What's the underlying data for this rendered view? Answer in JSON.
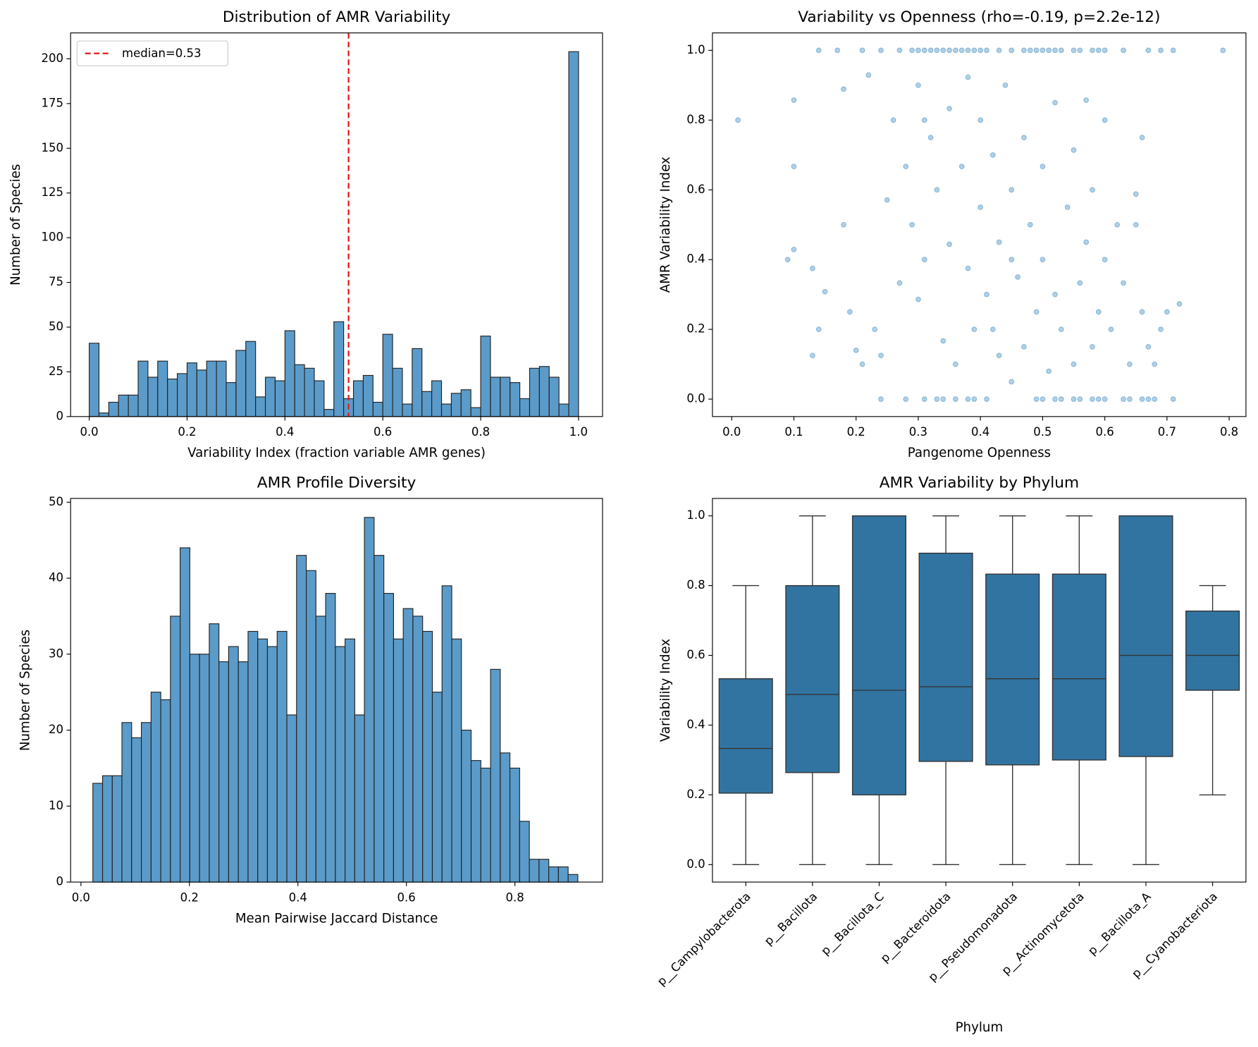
{
  "chart_data": [
    {
      "type": "histogram",
      "title": "Distribution of AMR Variability",
      "x_label": "Variability Index (fraction variable AMR genes)",
      "y_label": "Number of Species",
      "bins": [
        0,
        0.02,
        0.04,
        0.06,
        0.08,
        0.1,
        0.12,
        0.14,
        0.16,
        0.18,
        0.2,
        0.22,
        0.24,
        0.26,
        0.28,
        0.3,
        0.32,
        0.34,
        0.36,
        0.38,
        0.4,
        0.42,
        0.44,
        0.46,
        0.48,
        0.5,
        0.52,
        0.54,
        0.56,
        0.58,
        0.6,
        0.62,
        0.64,
        0.66,
        0.68,
        0.7,
        0.72,
        0.74,
        0.76,
        0.78,
        0.8,
        0.82,
        0.84,
        0.86,
        0.88,
        0.9,
        0.92,
        0.94,
        0.96,
        0.98,
        1
      ],
      "values": [
        41,
        2,
        8,
        12,
        12,
        31,
        22,
        31,
        21,
        24,
        30,
        26,
        31,
        31,
        19,
        37,
        42,
        11,
        22,
        20,
        48,
        29,
        27,
        20,
        4,
        53,
        10,
        20,
        23,
        8,
        46,
        27,
        7,
        38,
        14,
        20,
        7,
        13,
        15,
        5,
        45,
        22,
        22,
        19,
        10,
        27,
        28,
        22,
        7,
        204
      ],
      "color": "#5b9bc9",
      "median": 0.53,
      "median_label": "median=0.53",
      "median_color": "#e41a1c",
      "legend": "upper left",
      "xlim": [
        -0.038,
        1.049
      ],
      "xticks": [
        {
          "value": 0,
          "label": "0.0"
        },
        0.2,
        0.4,
        0.6,
        0.8,
        {
          "value": 1,
          "label": "1.0"
        }
      ],
      "ylim": [
        0,
        214.5
      ],
      "yticks": [
        0,
        25,
        50,
        75,
        100,
        125,
        150,
        175,
        200
      ]
    },
    {
      "type": "scatter",
      "title": "Variability vs Openness (rho=-0.19, p=2.2e-12)",
      "x_label": "Pangenome Openness",
      "y_label": "AMR Variability Index",
      "color": "#1f77b4",
      "x": [
        0.14,
        0.17,
        0.21,
        0.24,
        0.27,
        0.29,
        0.3,
        0.31,
        0.32,
        0.33,
        0.34,
        0.35,
        0.36,
        0.37,
        0.38,
        0.39,
        0.4,
        0.41,
        0.43,
        0.45,
        0.47,
        0.48,
        0.49,
        0.5,
        0.51,
        0.52,
        0.53,
        0.55,
        0.56,
        0.58,
        0.59,
        0.6,
        0.63,
        0.67,
        0.69,
        0.71,
        0.79,
        0.24,
        0.28,
        0.31,
        0.33,
        0.34,
        0.36,
        0.38,
        0.39,
        0.41,
        0.49,
        0.5,
        0.52,
        0.53,
        0.55,
        0.56,
        0.58,
        0.59,
        0.6,
        0.63,
        0.64,
        0.66,
        0.67,
        0.68,
        0.71,
        0.01,
        0.1,
        0.1,
        0.1,
        0.09,
        0.13,
        0.14,
        0.13,
        0.15,
        0.18,
        0.18,
        0.19,
        0.2,
        0.21,
        0.22,
        0.23,
        0.24,
        0.25,
        0.26,
        0.27,
        0.28,
        0.29,
        0.3,
        0.3,
        0.31,
        0.32,
        0.33,
        0.34,
        0.35,
        0.35,
        0.36,
        0.37,
        0.38,
        0.38,
        0.39,
        0.4,
        0.4,
        0.41,
        0.42,
        0.43,
        0.43,
        0.44,
        0.45,
        0.45,
        0.46,
        0.47,
        0.47,
        0.48,
        0.49,
        0.5,
        0.5,
        0.51,
        0.52,
        0.52,
        0.53,
        0.54,
        0.55,
        0.55,
        0.56,
        0.57,
        0.58,
        0.58,
        0.59,
        0.6,
        0.6,
        0.61,
        0.62,
        0.63,
        0.64,
        0.65,
        0.66,
        0.66,
        0.67,
        0.68,
        0.69,
        0.7,
        0.72,
        0.65,
        0.57,
        0.31,
        0.45,
        0.42
      ],
      "values": [
        1,
        1,
        1,
        1,
        1,
        1,
        1,
        1,
        1,
        1,
        1,
        1,
        1,
        1,
        1,
        1,
        1,
        1,
        1,
        1,
        1,
        1,
        1,
        1,
        1,
        1,
        1,
        1,
        1,
        1,
        1,
        1,
        1,
        1,
        1,
        1,
        1,
        0,
        0,
        0,
        0,
        0,
        0,
        0,
        0,
        0,
        0,
        0,
        0,
        0,
        0,
        0,
        0,
        0,
        0,
        0,
        0,
        0,
        0,
        0,
        0,
        0.8,
        0.857,
        0.667,
        0.429,
        0.4,
        0.375,
        0.2,
        0.125,
        0.308,
        0.5,
        0.889,
        0.25,
        0.14,
        0.1,
        0.929,
        0.2,
        0.125,
        0.571,
        0.8,
        0.333,
        0.667,
        0.5,
        0.286,
        0.9,
        0.4,
        0.75,
        0.6,
        0.167,
        0.444,
        0.833,
        0.1,
        0.667,
        0.375,
        0.923,
        0.2,
        0.55,
        0.8,
        0.3,
        0.7,
        0.125,
        0.45,
        0.9,
        0.05,
        0.6,
        0.35,
        0.75,
        0.15,
        0.5,
        0.25,
        0.667,
        0.4,
        0.08,
        0.85,
        0.3,
        0.2,
        0.55,
        0.1,
        0.714,
        0.333,
        0.45,
        0.6,
        0.15,
        0.25,
        0.4,
        0.8,
        0.2,
        0.5,
        0.333,
        0.1,
        0.5,
        0.25,
        0.75,
        0.15,
        0.1,
        0.2,
        0.25,
        0.273,
        0.588,
        0.857,
        0.8,
        0.4,
        0.2
      ],
      "xlim": [
        -0.031,
        0.827
      ],
      "xticks": [
        {
          "value": 0,
          "label": "0.0"
        },
        0.1,
        0.2,
        0.3,
        0.4,
        0.5,
        0.6,
        0.7,
        0.8
      ],
      "ylim": [
        -0.05,
        1.05
      ],
      "yticks": [
        {
          "value": 0,
          "label": "0.0"
        },
        0.2,
        0.4,
        0.6,
        0.8,
        {
          "value": 1,
          "label": "1.0"
        }
      ]
    },
    {
      "type": "histogram",
      "title": "AMR Profile Diversity",
      "x_label": "Mean Pairwise Jaccard Distance",
      "y_label": "Number of Species",
      "bins": [
        0.022,
        0.0399,
        0.0578,
        0.0756,
        0.0935,
        0.1114,
        0.1293,
        0.1472,
        0.165,
        0.1829,
        0.2008,
        0.2187,
        0.2366,
        0.2544,
        0.2723,
        0.2902,
        0.3081,
        0.326,
        0.3438,
        0.3617,
        0.3796,
        0.3975,
        0.4154,
        0.4332,
        0.4511,
        0.469,
        0.4869,
        0.5048,
        0.5226,
        0.5405,
        0.5584,
        0.5763,
        0.5942,
        0.612,
        0.6299,
        0.6478,
        0.6657,
        0.6836,
        0.7014,
        0.7193,
        0.7372,
        0.7551,
        0.773,
        0.7908,
        0.8087,
        0.8266,
        0.8445,
        0.8624,
        0.8802,
        0.8981,
        0.916
      ],
      "values": [
        13,
        14,
        14,
        21,
        19,
        21,
        25,
        24,
        35,
        44,
        30,
        30,
        34,
        29,
        31,
        29,
        33,
        32,
        31,
        33,
        22,
        43,
        41,
        35,
        38,
        31,
        32,
        22,
        48,
        43,
        38,
        32,
        36,
        35,
        33,
        25,
        39,
        32,
        20,
        16,
        15,
        28,
        17,
        15,
        8,
        3,
        3,
        2,
        2,
        1
      ],
      "color": "#5b9bc9",
      "xlim": [
        -0.019,
        0.9615
      ],
      "xticks": [
        {
          "value": 0,
          "label": "0.0"
        },
        0.2,
        0.4,
        0.6,
        0.8
      ],
      "ylim": [
        0,
        50.5
      ],
      "yticks": [
        0,
        10,
        20,
        30,
        40,
        50
      ]
    },
    {
      "type": "box",
      "title": "AMR Variability by Phylum",
      "x_label": "Phylum",
      "y_label": "Variability Index",
      "color": "#3274a1",
      "categories": [
        "p__Campylobacterota",
        "p__Bacillota",
        "p__Bacillota_C",
        "p__Bacteroidota",
        "p__Pseudomonadota",
        "p__Actinomycetota",
        "p__Bacillota_A",
        "p__Cyanobacteriota"
      ],
      "boxes": [
        {
          "low": 0,
          "q1": 0.205,
          "median": 0.333,
          "q3": 0.533,
          "high": 0.8
        },
        {
          "low": 0,
          "q1": 0.264,
          "median": 0.488,
          "q3": 0.8,
          "high": 1
        },
        {
          "low": 0,
          "q1": 0.2,
          "median": 0.5,
          "q3": 1,
          "high": 1
        },
        {
          "low": 0,
          "q1": 0.296,
          "median": 0.51,
          "q3": 0.893,
          "high": 1
        },
        {
          "low": 0,
          "q1": 0.286,
          "median": 0.533,
          "q3": 0.833,
          "high": 1
        },
        {
          "low": 0,
          "q1": 0.3,
          "median": 0.533,
          "q3": 0.833,
          "high": 1
        },
        {
          "low": 0,
          "q1": 0.31,
          "median": 0.6,
          "q3": 1,
          "high": 1
        },
        {
          "low": 0.2,
          "q1": 0.5,
          "median": 0.6,
          "q3": 0.727,
          "high": 0.8
        }
      ],
      "ylim": [
        -0.05,
        1.05
      ],
      "yticks": [
        {
          "value": 0,
          "label": "0.0"
        },
        0.2,
        0.4,
        0.6,
        0.8,
        {
          "value": 1,
          "label": "1.0"
        }
      ]
    }
  ]
}
